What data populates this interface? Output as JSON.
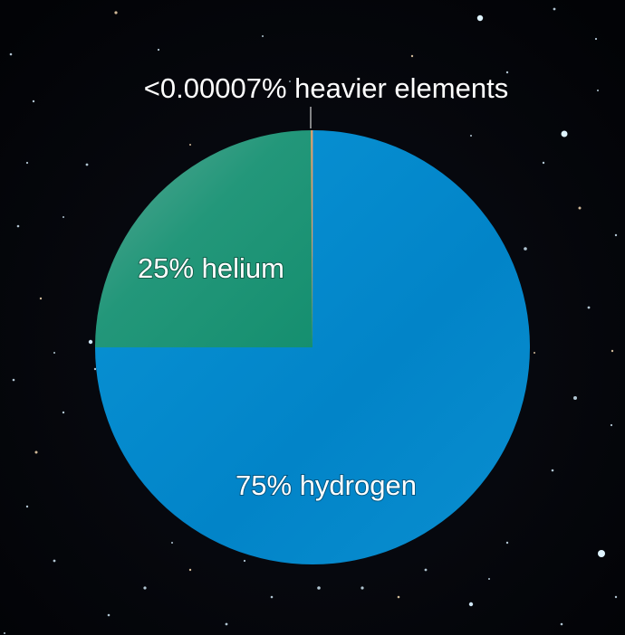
{
  "colors": {
    "background": "#030408",
    "hydrogen": "#0288cc",
    "helium": "#1f9678",
    "heavier": "#e0a070",
    "text": "#ffffff"
  },
  "chart_data": {
    "type": "pie",
    "start_position": "top",
    "direction": "clockwise",
    "slices": [
      {
        "label": "75% hydrogen",
        "value": 75,
        "color": "#0288cc"
      },
      {
        "label": "25% helium",
        "value": 25,
        "color": "#1f9678"
      },
      {
        "label": "<0.00007% heavier elements",
        "value": 7e-05,
        "color": "#e0a070"
      }
    ]
  }
}
